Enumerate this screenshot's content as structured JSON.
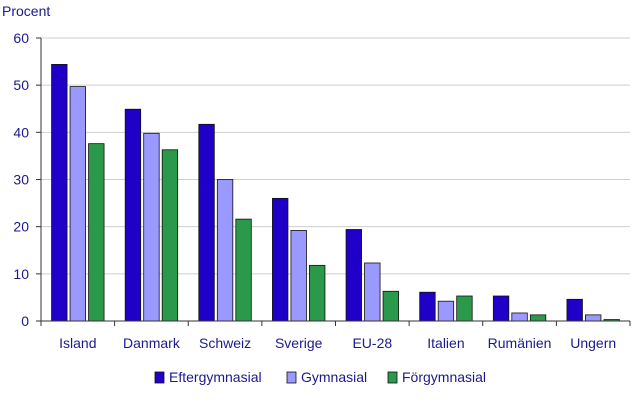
{
  "chart_data": {
    "type": "bar",
    "title": "",
    "xlabel": "",
    "ylabel": "Procent",
    "ylim": [
      0,
      60
    ],
    "yticks": [
      0,
      10,
      20,
      30,
      40,
      50,
      60
    ],
    "grid": "horizontal",
    "legend_position": "bottom",
    "categories": [
      "Island",
      "Danmark",
      "Schweiz",
      "Sverige",
      "EU-28",
      "Italien",
      "Rumänien",
      "Ungern"
    ],
    "series": [
      {
        "name": "Eftergymnasial",
        "color": "#1f00c8",
        "values": [
          54.4,
          44.9,
          41.7,
          26.0,
          19.4,
          6.1,
          5.3,
          4.6
        ]
      },
      {
        "name": "Gymnasial",
        "color": "#9999ff",
        "values": [
          49.7,
          39.8,
          30.0,
          19.2,
          12.3,
          4.2,
          1.7,
          1.3
        ]
      },
      {
        "name": "Förgymnasial",
        "color": "#2a9a4a",
        "values": [
          37.6,
          36.3,
          21.6,
          11.8,
          6.3,
          5.3,
          1.3,
          0.3
        ]
      }
    ]
  }
}
